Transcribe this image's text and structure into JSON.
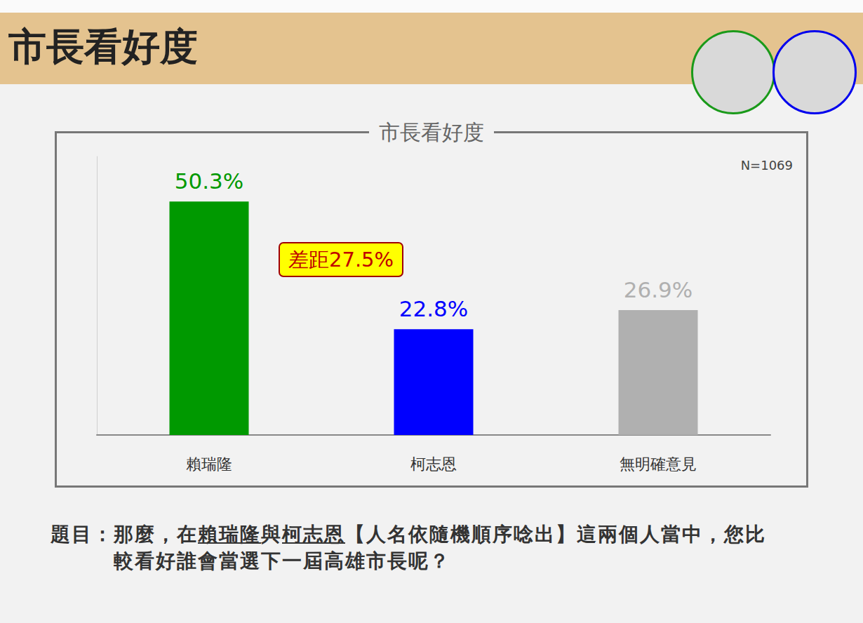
{
  "header": {
    "title": "市長看好度"
  },
  "chart_data": {
    "type": "bar",
    "title": "市長看好度",
    "note": "N=1069",
    "categories": [
      "賴瑞隆",
      "柯志恩",
      "無明確意見"
    ],
    "values": [
      50.3,
      22.8,
      26.9
    ],
    "value_labels": [
      "50.3%",
      "22.8%",
      "26.9%"
    ],
    "colors": [
      "#009900",
      "#0000FF",
      "#B0B0B0"
    ],
    "ylim": [
      0,
      60
    ],
    "yticks": [
      0,
      60
    ],
    "tick_labels": "x",
    "grid": false,
    "data_labels": true,
    "annotation": "差距27.5%"
  },
  "question": {
    "label": "題目：",
    "text": "那麼，在賴瑞隆與柯志恩【人名依隨機順序唸出】這兩個人當中，您比較看好誰會當選下一屆高雄市長呢？"
  }
}
